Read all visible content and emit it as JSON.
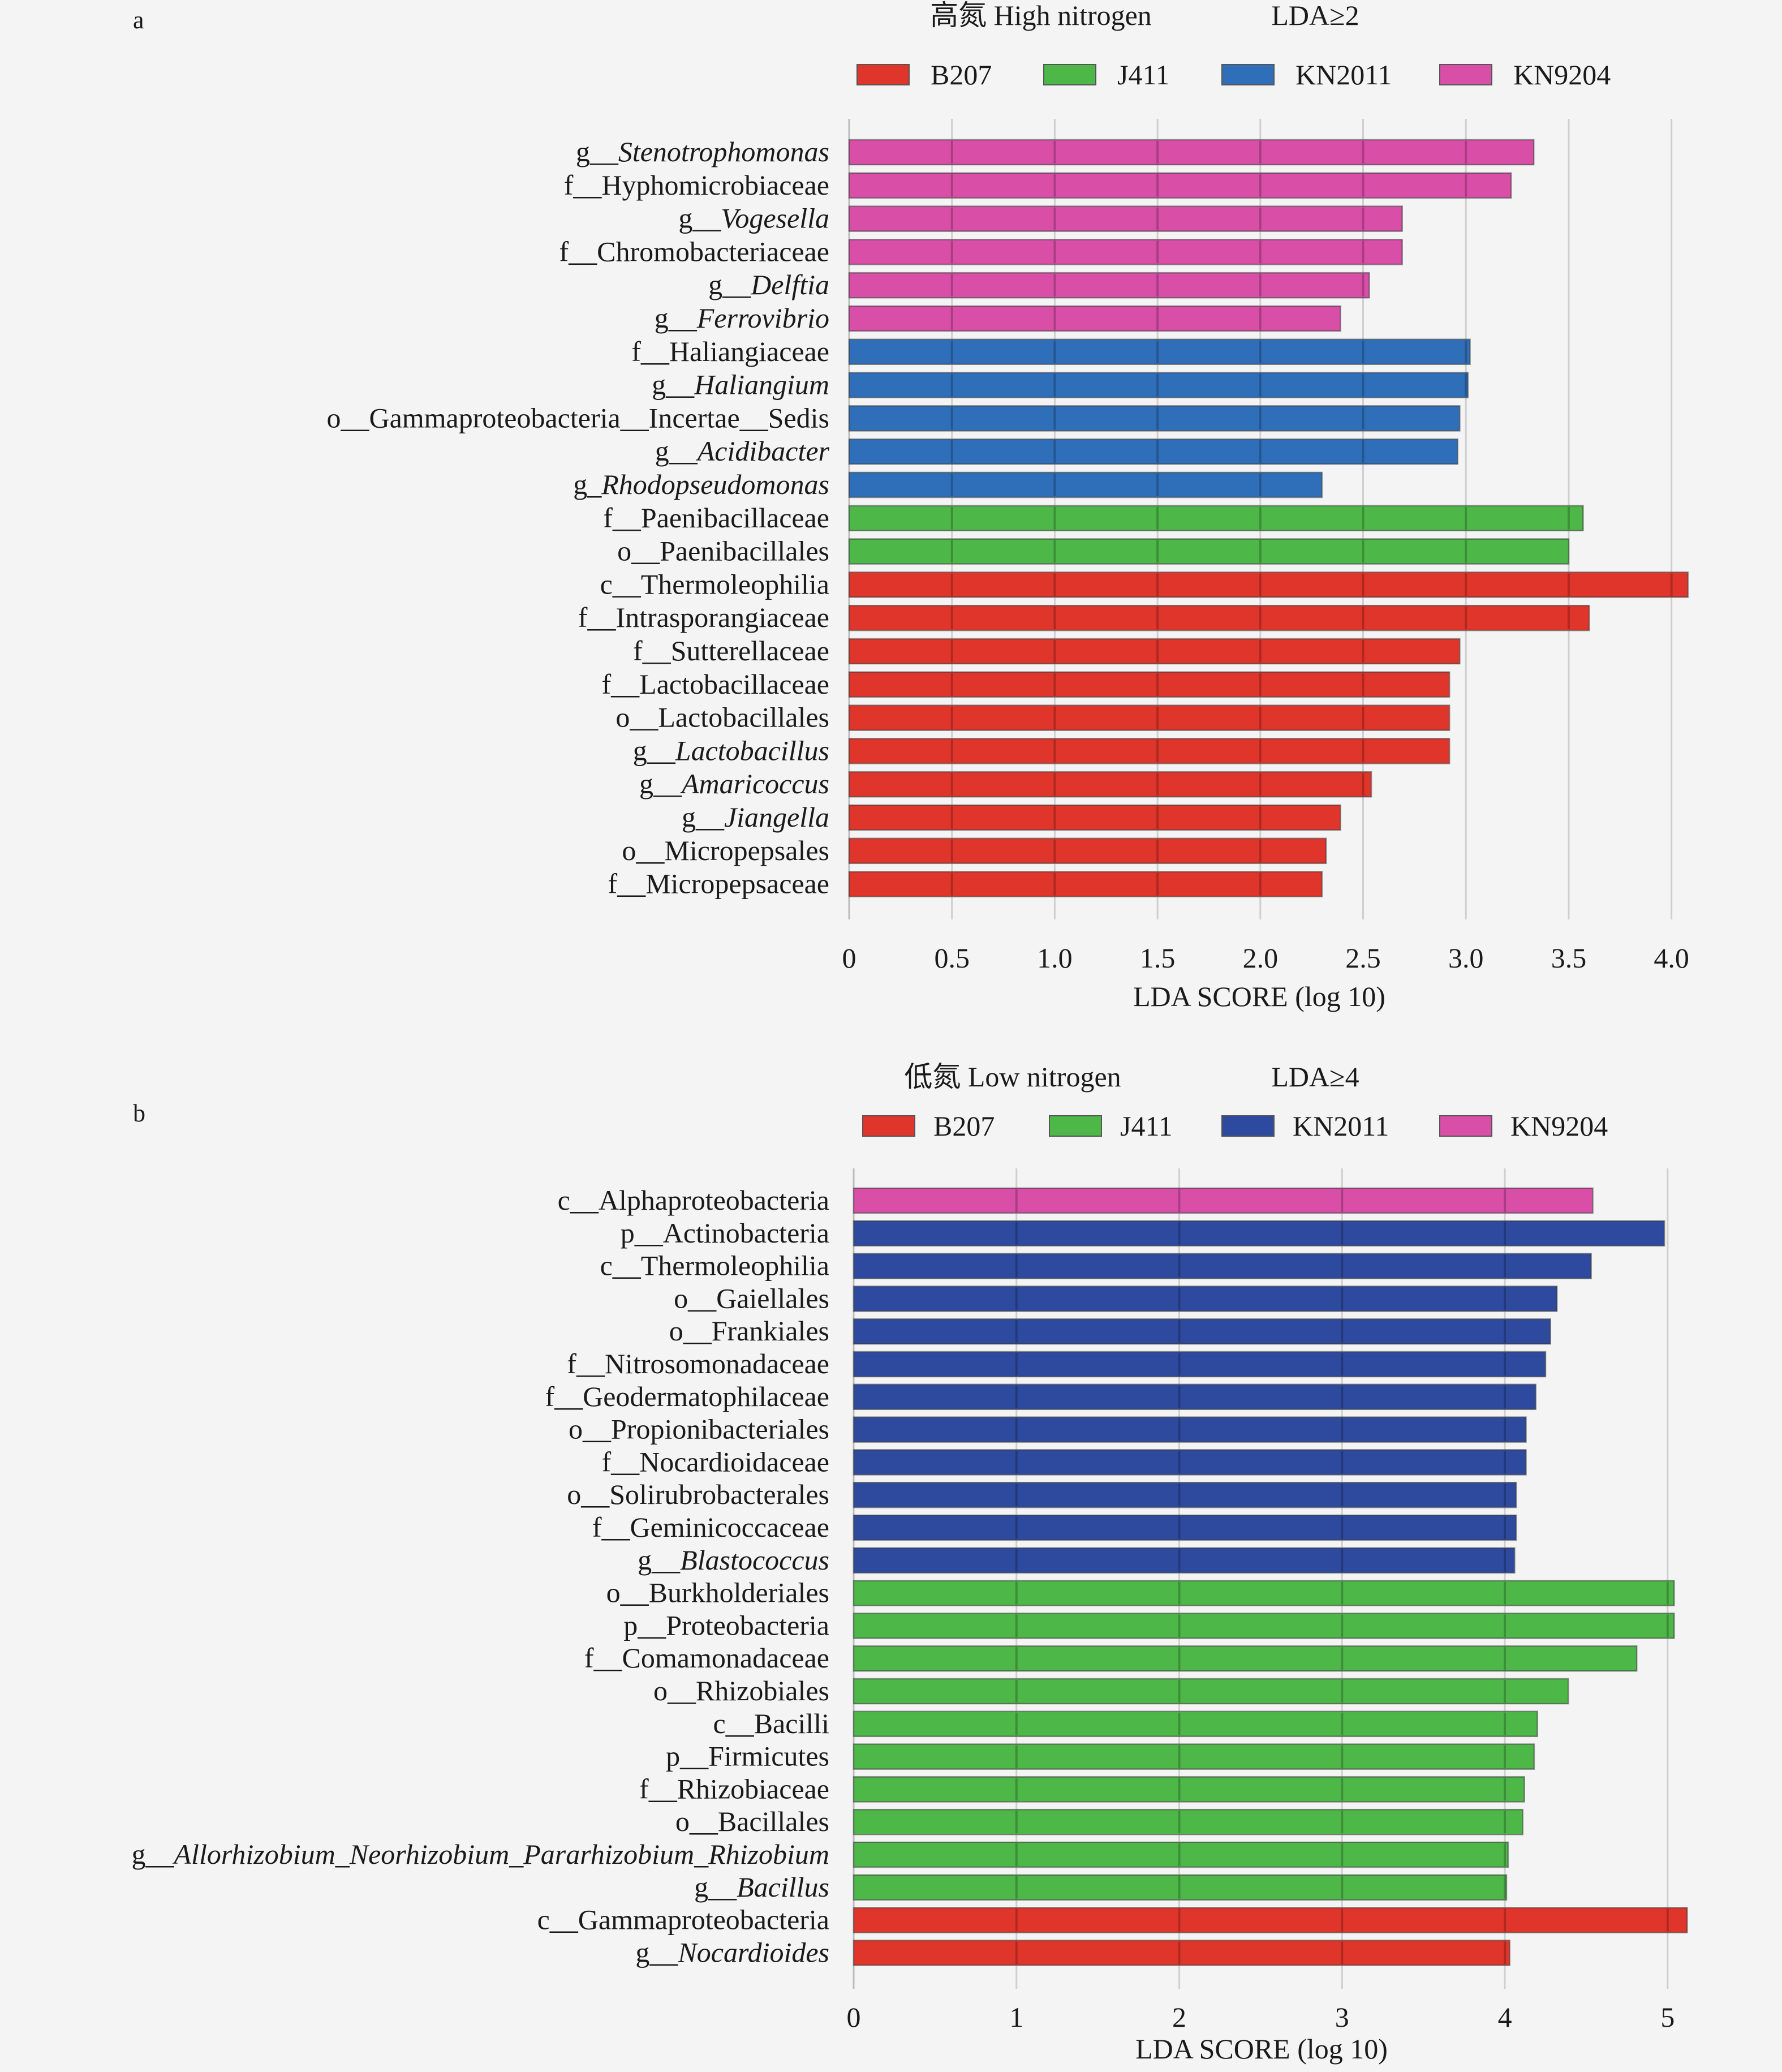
{
  "chart_data": [
    {
      "panel_label": "a",
      "type": "bar",
      "orientation": "horizontal",
      "title": "高氮 High nitrogen",
      "threshold_label": "LDA≥2",
      "xlabel": "LDA SCORE (log 10)",
      "xlim": [
        0,
        4.1
      ],
      "xticks": [
        {
          "value": 0,
          "label": "0"
        },
        {
          "value": 0.5,
          "label": "0.5"
        },
        {
          "value": 1.0,
          "label": "1.0"
        },
        {
          "value": 1.5,
          "label": "1.5"
        },
        {
          "value": 2.0,
          "label": "2.0"
        },
        {
          "value": 2.5,
          "label": "2.5"
        },
        {
          "value": 3.0,
          "label": "3.0"
        },
        {
          "value": 3.5,
          "label": "3.5"
        },
        {
          "value": 4.0,
          "label": "4.0"
        }
      ],
      "legend": [
        {
          "group": "B207",
          "label": "B207",
          "color": "#e0352b"
        },
        {
          "group": "J411",
          "label": "J411",
          "color": "#4db848"
        },
        {
          "group": "KN2011",
          "label": "KN2011",
          "color": "#2f6fba"
        },
        {
          "group": "KN9204",
          "label": "KN9204",
          "color": "#d94fa8"
        }
      ],
      "bars": [
        {
          "prefix": "g__",
          "name": "Stenotrophomonas",
          "italic": true,
          "value": 3.33,
          "group": "KN9204"
        },
        {
          "prefix": "f__",
          "name": "Hyphomicrobiaceae",
          "italic": false,
          "value": 3.22,
          "group": "KN9204"
        },
        {
          "prefix": "g__",
          "name": "Vogesella",
          "italic": true,
          "value": 2.69,
          "group": "KN9204"
        },
        {
          "prefix": "f__",
          "name": "Chromobacteriaceae",
          "italic": false,
          "value": 2.69,
          "group": "KN9204"
        },
        {
          "prefix": "g__",
          "name": "Delftia",
          "italic": true,
          "value": 2.53,
          "group": "KN9204"
        },
        {
          "prefix": "g__",
          "name": "Ferrovibrio",
          "italic": true,
          "value": 2.39,
          "group": "KN9204"
        },
        {
          "prefix": "f__",
          "name": "Haliangiaceae",
          "italic": false,
          "value": 3.02,
          "group": "KN2011"
        },
        {
          "prefix": "g__",
          "name": "Haliangium",
          "italic": true,
          "value": 3.01,
          "group": "KN2011"
        },
        {
          "prefix": "o__",
          "name": "Gammaproteobacteria__Incertae__Sedis",
          "italic": false,
          "value": 2.97,
          "group": "KN2011"
        },
        {
          "prefix": "g__",
          "name": "Acidibacter",
          "italic": true,
          "value": 2.96,
          "group": "KN2011"
        },
        {
          "prefix": "g_",
          "name": "Rhodopseudomonas",
          "italic": true,
          "value": 2.3,
          "group": "KN2011"
        },
        {
          "prefix": "f__",
          "name": "Paenibacillaceae",
          "italic": false,
          "value": 3.57,
          "group": "J411"
        },
        {
          "prefix": "o__",
          "name": "Paenibacillales",
          "italic": false,
          "value": 3.5,
          "group": "J411"
        },
        {
          "prefix": "c__",
          "name": "Thermoleophilia",
          "italic": false,
          "value": 4.08,
          "group": "B207"
        },
        {
          "prefix": "f__",
          "name": "Intrasporangiaceae",
          "italic": false,
          "value": 3.6,
          "group": "B207"
        },
        {
          "prefix": "f__",
          "name": "Sutterellaceae",
          "italic": false,
          "value": 2.97,
          "group": "B207"
        },
        {
          "prefix": "f__",
          "name": "Lactobacillaceae",
          "italic": false,
          "value": 2.92,
          "group": "B207"
        },
        {
          "prefix": "o__",
          "name": "Lactobacillales",
          "italic": false,
          "value": 2.92,
          "group": "B207"
        },
        {
          "prefix": "g__",
          "name": "Lactobacillus",
          "italic": true,
          "value": 2.92,
          "group": "B207"
        },
        {
          "prefix": "g__",
          "name": "Amaricoccus",
          "italic": true,
          "value": 2.54,
          "group": "B207"
        },
        {
          "prefix": "g__",
          "name": "Jiangella",
          "italic": true,
          "value": 2.39,
          "group": "B207"
        },
        {
          "prefix": "o__",
          "name": "Micropepsales",
          "italic": false,
          "value": 2.32,
          "group": "B207"
        },
        {
          "prefix": "f__",
          "name": "Micropepsaceae",
          "italic": false,
          "value": 2.3,
          "group": "B207"
        }
      ]
    },
    {
      "panel_label": "b",
      "type": "bar",
      "orientation": "horizontal",
      "title": "低氮 Low nitrogen",
      "threshold_label": "LDA≥4",
      "xlabel": "LDA SCORE (log 10)",
      "xlim": [
        0,
        5.15
      ],
      "xticks": [
        {
          "value": 0,
          "label": "0"
        },
        {
          "value": 1,
          "label": "1"
        },
        {
          "value": 2,
          "label": "2"
        },
        {
          "value": 3,
          "label": "3"
        },
        {
          "value": 4,
          "label": "4"
        },
        {
          "value": 5,
          "label": "5"
        }
      ],
      "legend": [
        {
          "group": "B207",
          "label": "B207",
          "color": "#e0352b"
        },
        {
          "group": "J411",
          "label": "J411",
          "color": "#4db848"
        },
        {
          "group": "KN2011",
          "label": "KN2011",
          "color": "#2e4a9e"
        },
        {
          "group": "KN9204",
          "label": "KN9204",
          "color": "#d94fa8"
        }
      ],
      "bars": [
        {
          "prefix": "c__",
          "name": "Alphaproteobacteria",
          "italic": false,
          "value": 4.54,
          "group": "KN9204"
        },
        {
          "prefix": "p__",
          "name": "Actinobacteria",
          "italic": false,
          "value": 4.98,
          "group": "KN2011"
        },
        {
          "prefix": "c__",
          "name": "Thermoleophilia",
          "italic": false,
          "value": 4.53,
          "group": "KN2011"
        },
        {
          "prefix": "o__",
          "name": "Gaiellales",
          "italic": false,
          "value": 4.32,
          "group": "KN2011"
        },
        {
          "prefix": "o__",
          "name": "Frankiales",
          "italic": false,
          "value": 4.28,
          "group": "KN2011"
        },
        {
          "prefix": "f__",
          "name": "Nitrosomonadaceae",
          "italic": false,
          "value": 4.25,
          "group": "KN2011"
        },
        {
          "prefix": "f__",
          "name": "Geodermatophilaceae",
          "italic": false,
          "value": 4.19,
          "group": "KN2011"
        },
        {
          "prefix": "o__",
          "name": "Propionibacteriales",
          "italic": false,
          "value": 4.13,
          "group": "KN2011"
        },
        {
          "prefix": "f__",
          "name": "Nocardioidaceae",
          "italic": false,
          "value": 4.13,
          "group": "KN2011"
        },
        {
          "prefix": "o__",
          "name": "Solirubrobacterales",
          "italic": false,
          "value": 4.07,
          "group": "KN2011"
        },
        {
          "prefix": "f__",
          "name": "Geminicoccaceae",
          "italic": false,
          "value": 4.07,
          "group": "KN2011"
        },
        {
          "prefix": "g__",
          "name": "Blastococcus",
          "italic": true,
          "value": 4.06,
          "group": "KN2011"
        },
        {
          "prefix": "o__",
          "name": "Burkholderiales",
          "italic": false,
          "value": 5.04,
          "group": "J411"
        },
        {
          "prefix": "p__",
          "name": "Proteobacteria",
          "italic": false,
          "value": 5.04,
          "group": "J411"
        },
        {
          "prefix": "f__",
          "name": "Comamonadaceae",
          "italic": false,
          "value": 4.81,
          "group": "J411"
        },
        {
          "prefix": "o__",
          "name": "Rhizobiales",
          "italic": false,
          "value": 4.39,
          "group": "J411"
        },
        {
          "prefix": "c__",
          "name": "Bacilli",
          "italic": false,
          "value": 4.2,
          "group": "J411"
        },
        {
          "prefix": "p__",
          "name": "Firmicutes",
          "italic": false,
          "value": 4.18,
          "group": "J411"
        },
        {
          "prefix": "f__",
          "name": "Rhizobiaceae",
          "italic": false,
          "value": 4.12,
          "group": "J411"
        },
        {
          "prefix": "o__",
          "name": "Bacillales",
          "italic": false,
          "value": 4.11,
          "group": "J411"
        },
        {
          "prefix": "g__",
          "name": "Allorhizobium_Neorhizobium_Pararhizobium_Rhizobium",
          "italic": true,
          "value": 4.02,
          "group": "J411"
        },
        {
          "prefix": "g__",
          "name": "Bacillus",
          "italic": true,
          "value": 4.01,
          "group": "J411"
        },
        {
          "prefix": "c__",
          "name": "Gammaproteobacteria",
          "italic": false,
          "value": 5.12,
          "group": "B207"
        },
        {
          "prefix": "g__",
          "name": "Nocardioides",
          "italic": true,
          "value": 4.03,
          "group": "B207"
        }
      ]
    }
  ]
}
